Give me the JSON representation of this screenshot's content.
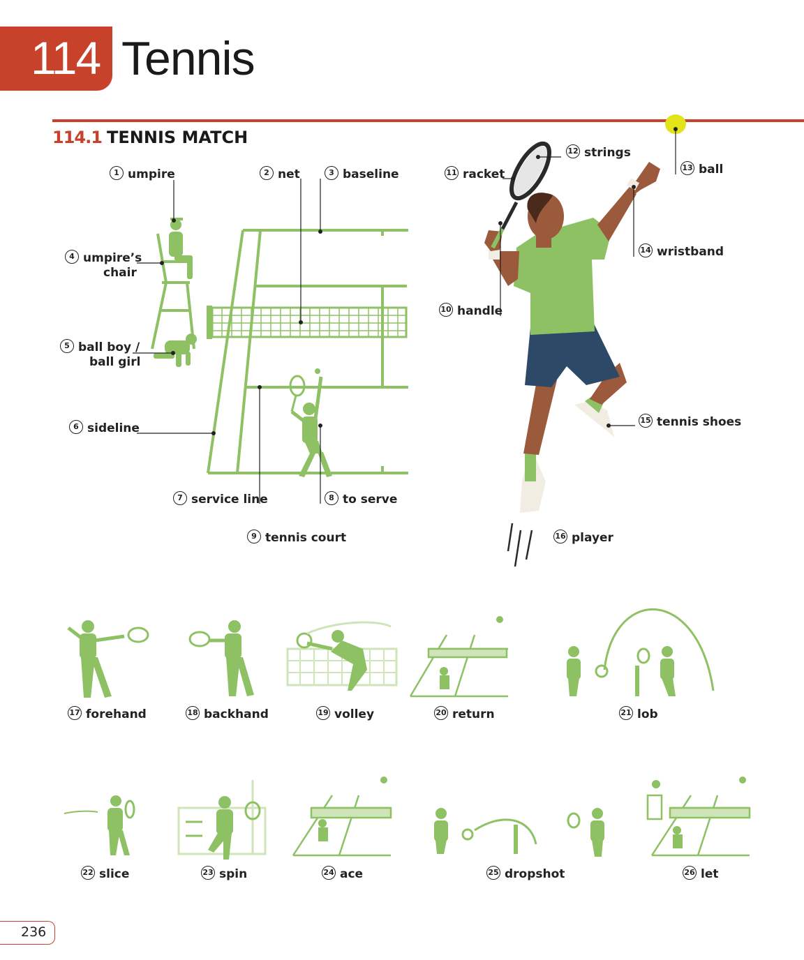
{
  "header": {
    "chapter_number": "114",
    "chapter_title": "Tennis"
  },
  "section": {
    "number": "114.1",
    "title": "TENNIS MATCH"
  },
  "labels": [
    {
      "n": "1",
      "text": "umpire"
    },
    {
      "n": "2",
      "text": "net"
    },
    {
      "n": "3",
      "text": "baseline"
    },
    {
      "n": "4",
      "text": "umpire’s"
    },
    {
      "n": "4b",
      "text": "chair"
    },
    {
      "n": "5",
      "text": "ball boy /"
    },
    {
      "n": "5b",
      "text": "ball girl"
    },
    {
      "n": "6",
      "text": "sideline"
    },
    {
      "n": "7",
      "text": "service line"
    },
    {
      "n": "8",
      "text": "to serve"
    },
    {
      "n": "9",
      "text": "tennis court"
    },
    {
      "n": "10",
      "text": "handle"
    },
    {
      "n": "11",
      "text": "racket"
    },
    {
      "n": "12",
      "text": "strings"
    },
    {
      "n": "13",
      "text": "ball"
    },
    {
      "n": "14",
      "text": "wristband"
    },
    {
      "n": "15",
      "text": "tennis shoes"
    },
    {
      "n": "16",
      "text": "player"
    },
    {
      "n": "17",
      "text": "forehand"
    },
    {
      "n": "18",
      "text": "backhand"
    },
    {
      "n": "19",
      "text": "volley"
    },
    {
      "n": "20",
      "text": "return"
    },
    {
      "n": "21",
      "text": "lob"
    },
    {
      "n": "22",
      "text": "slice"
    },
    {
      "n": "23",
      "text": "spin"
    },
    {
      "n": "24",
      "text": "ace"
    },
    {
      "n": "25",
      "text": "dropshot"
    },
    {
      "n": "26",
      "text": "let"
    }
  ],
  "numbers": [
    "1",
    "2",
    "3",
    "4",
    "5",
    "6",
    "7",
    "8",
    "9",
    "10",
    "11",
    "12",
    "13",
    "14",
    "15",
    "16",
    "17",
    "18",
    "19",
    "20",
    "21",
    "22",
    "23",
    "24",
    "25",
    "26"
  ],
  "footer": {
    "page_number": "236"
  },
  "colors": {
    "accent": "#c8412a",
    "illustration_green": "#8dc163",
    "shorts_blue": "#2c4a68",
    "skin": "#9b5a3c"
  }
}
